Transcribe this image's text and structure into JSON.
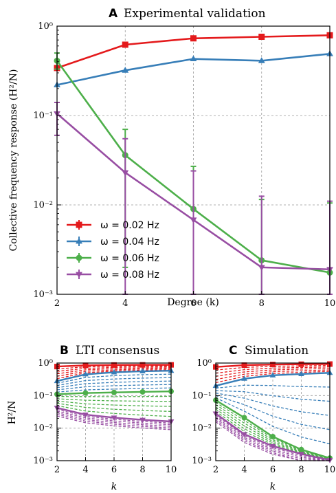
{
  "colors": {
    "red": "#e41a1c",
    "blue": "#377eb8",
    "green": "#4daf4a",
    "purple": "#984ea3",
    "grid": "#999999"
  },
  "chart_data": [
    {
      "panel": "A",
      "title_letter": "A",
      "title": "Experimental validation",
      "type": "line",
      "xlabel": "Degree (k)",
      "ylabel": "Collective frequency response (H²/N)",
      "yscale": "log",
      "ylim": [
        0.001,
        1
      ],
      "xticks": [
        2,
        4,
        6,
        8,
        10
      ],
      "ytick_labels": [
        "10⁰",
        "10⁻¹",
        "10⁻²",
        "10⁻³"
      ],
      "grid": true,
      "legend_position": "lower-left",
      "series": [
        {
          "name": "ω = 0.02 Hz",
          "color": "red",
          "marker": "square",
          "x": [
            2,
            4,
            6,
            8,
            10
          ],
          "y": [
            0.34,
            0.62,
            0.73,
            0.76,
            0.79
          ]
        },
        {
          "name": "ω = 0.04 Hz",
          "color": "blue",
          "marker": "triangle-up",
          "x": [
            2,
            4,
            6,
            8,
            10
          ],
          "y": [
            0.22,
            0.32,
            0.43,
            0.41,
            0.49
          ]
        },
        {
          "name": "ω = 0.06 Hz",
          "color": "green",
          "marker": "circle",
          "x": [
            2,
            4,
            6,
            8,
            10
          ],
          "y": [
            0.41,
            0.036,
            0.009,
            0.0024,
            0.00175
          ],
          "err_low": [
            0.33,
            0.002,
            0.001,
            0.001,
            0.001
          ],
          "err_high": [
            0.5,
            0.07,
            0.027,
            0.0115,
            0.0105
          ]
        },
        {
          "name": "ω = 0.08 Hz",
          "color": "purple",
          "marker": "triangle-down",
          "x": [
            2,
            4,
            6,
            8,
            10
          ],
          "y": [
            0.105,
            0.023,
            0.0068,
            0.002,
            0.0019
          ],
          "err_low": [
            0.06,
            0.001,
            0.001,
            0.001,
            0.001
          ],
          "err_high": [
            0.14,
            0.055,
            0.024,
            0.0125,
            0.011
          ]
        }
      ]
    },
    {
      "panel": "B",
      "title_letter": "B",
      "title": "LTI consensus",
      "type": "line",
      "xlabel": "k",
      "ylabel": "H²/N",
      "yscale": "log",
      "ylim": [
        0.001,
        1
      ],
      "xticks": [
        2,
        4,
        6,
        8,
        10
      ],
      "ytick_labels": [
        "10⁰",
        "10⁻¹",
        "10⁻²",
        "10⁻³"
      ],
      "grid": true,
      "series": [
        {
          "color": "red",
          "marker": "square",
          "x": [
            2,
            4,
            6,
            8,
            10
          ],
          "y": [
            0.78,
            0.85,
            0.87,
            0.88,
            0.88
          ]
        },
        {
          "color": "blue",
          "marker": "triangle-up",
          "x": [
            2,
            4,
            6,
            8,
            10
          ],
          "y": [
            0.28,
            0.45,
            0.52,
            0.56,
            0.58
          ]
        },
        {
          "color": "green",
          "marker": "circle",
          "x": [
            2,
            4,
            6,
            8,
            10
          ],
          "y": [
            0.11,
            0.12,
            0.125,
            0.13,
            0.135
          ]
        },
        {
          "color": "purple",
          "marker": "triangle-down",
          "x": [
            2,
            4,
            6,
            8,
            10
          ],
          "y": [
            0.042,
            0.026,
            0.021,
            0.018,
            0.016
          ]
        }
      ]
    },
    {
      "panel": "C",
      "title_letter": "C",
      "title": "Simulation",
      "type": "line",
      "xlabel": "k",
      "yscale": "log",
      "ylim": [
        0.001,
        1
      ],
      "xticks": [
        2,
        4,
        6,
        8,
        10
      ],
      "ytick_labels": [
        "10⁰",
        "10⁻¹",
        "10⁻²",
        "10⁻³"
      ],
      "grid": true,
      "series": [
        {
          "color": "red",
          "marker": "square",
          "x": [
            2,
            4,
            6,
            8,
            10
          ],
          "y": [
            0.76,
            0.86,
            0.9,
            0.92,
            0.93
          ]
        },
        {
          "color": "blue",
          "marker": "triangle-up",
          "x": [
            2,
            4,
            6,
            8,
            10
          ],
          "y": [
            0.2,
            0.33,
            0.42,
            0.46,
            0.5
          ]
        },
        {
          "color": "green",
          "marker": "circle",
          "x": [
            2,
            4,
            6,
            8,
            10
          ],
          "y": [
            0.072,
            0.021,
            0.0055,
            0.0022,
            0.0012
          ]
        },
        {
          "color": "purple",
          "marker": "triangle-down",
          "x": [
            2,
            4,
            6,
            8,
            10
          ],
          "y": [
            0.028,
            0.0065,
            0.0028,
            0.0016,
            0.00105
          ]
        }
      ]
    }
  ]
}
